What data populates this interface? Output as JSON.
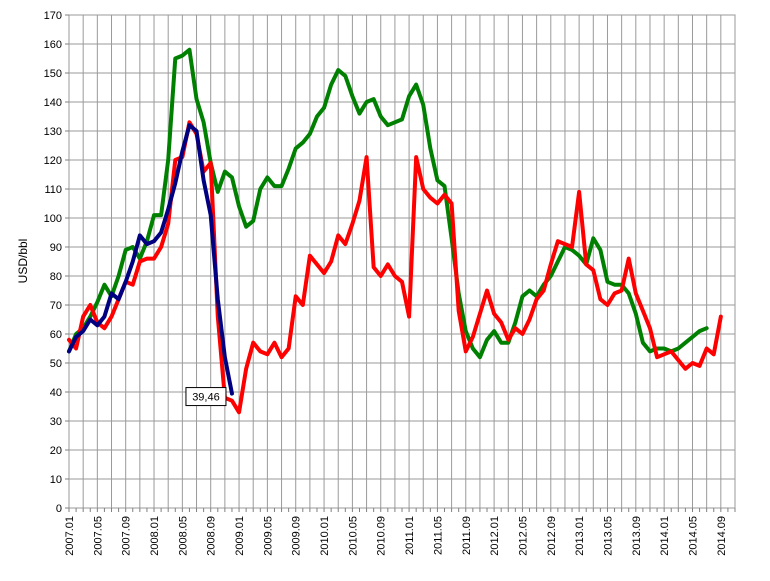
{
  "chart_data": {
    "type": "line",
    "ylabel": "USD/bbl",
    "ylim": [
      0,
      170
    ],
    "ytick_step": 10,
    "grid": true,
    "x_tick_labels": [
      "2007.01",
      "2007.05",
      "2007.09",
      "2008.01",
      "2008.05",
      "2008.09",
      "2009.01",
      "2009.05",
      "2009.09",
      "2010.01",
      "2010.05",
      "2010.09",
      "2011.01",
      "2011.05",
      "2011.09",
      "2012.01",
      "2012.05",
      "2012.09",
      "2013.01",
      "2013.05",
      "2013.09",
      "2014.01",
      "2014.05",
      "2014.09"
    ],
    "x_months": [
      "2007.01",
      "2007.02",
      "2007.03",
      "2007.04",
      "2007.05",
      "2007.06",
      "2007.07",
      "2007.08",
      "2007.09",
      "2007.10",
      "2007.11",
      "2007.12",
      "2008.01",
      "2008.02",
      "2008.03",
      "2008.04",
      "2008.05",
      "2008.06",
      "2008.07",
      "2008.08",
      "2008.09",
      "2008.10",
      "2008.11",
      "2008.12",
      "2009.01",
      "2009.02",
      "2009.03",
      "2009.04",
      "2009.05",
      "2009.06",
      "2009.07",
      "2009.08",
      "2009.09",
      "2009.10",
      "2009.11",
      "2009.12",
      "2010.01",
      "2010.02",
      "2010.03",
      "2010.04",
      "2010.05",
      "2010.06",
      "2010.07",
      "2010.08",
      "2010.09",
      "2010.10",
      "2010.11",
      "2010.12",
      "2011.01",
      "2011.02",
      "2011.03",
      "2011.04",
      "2011.05",
      "2011.06",
      "2011.07",
      "2011.08",
      "2011.09",
      "2011.10",
      "2011.11",
      "2011.12",
      "2012.01",
      "2012.02",
      "2012.03",
      "2012.04",
      "2012.05",
      "2012.06",
      "2012.07",
      "2012.08",
      "2012.09",
      "2012.10",
      "2012.11",
      "2012.12",
      "2013.01",
      "2013.02",
      "2013.03",
      "2013.04",
      "2013.05",
      "2013.06",
      "2013.07",
      "2013.08",
      "2013.09",
      "2013.10",
      "2013.11",
      "2013.12",
      "2014.01",
      "2014.02",
      "2014.03",
      "2014.04",
      "2014.05",
      "2014.06",
      "2014.07",
      "2014.08",
      "2014.09",
      "2014.10",
      "2014.11"
    ],
    "series": [
      {
        "color": "#008000",
        "start_index": 0,
        "values": [
          54,
          60,
          62,
          66,
          71,
          77,
          73,
          80,
          89,
          90,
          86,
          92,
          101,
          101,
          120,
          155,
          156,
          158,
          141,
          133,
          119,
          109,
          116,
          114,
          104,
          97,
          99,
          110,
          114,
          111,
          111,
          117,
          124,
          126,
          129,
          135,
          138,
          146,
          151,
          149,
          142,
          136,
          140,
          141,
          135,
          132,
          133,
          134,
          142,
          146,
          139,
          124,
          113,
          111,
          93,
          74,
          61,
          55,
          52,
          58,
          61,
          57,
          57,
          64,
          73,
          75,
          73,
          77,
          80,
          85,
          90,
          89,
          87,
          84,
          93,
          89,
          78,
          77,
          77,
          74,
          67,
          57,
          54,
          55,
          55,
          54,
          55,
          57,
          59,
          61,
          62
        ]
      },
      {
        "color": "#ff0000",
        "start_index": 0,
        "values": [
          58,
          55,
          66,
          70,
          64,
          62,
          66,
          72,
          78,
          77,
          85,
          86,
          86,
          90,
          98,
          120,
          121,
          133,
          129,
          116,
          119,
          66,
          38,
          37,
          33,
          48,
          57,
          54,
          53,
          57,
          52,
          55,
          73,
          70,
          87,
          84,
          81,
          85,
          94,
          91,
          98,
          106,
          121,
          83,
          80,
          84,
          80,
          78,
          66,
          121,
          110,
          107,
          105,
          108,
          105,
          68,
          54,
          59,
          67,
          75,
          67,
          64,
          58,
          62,
          60,
          65,
          72,
          75,
          84,
          92,
          91,
          90,
          109,
          84,
          82,
          72,
          70,
          74,
          75,
          86,
          74,
          68,
          62,
          52,
          53,
          54,
          51,
          48,
          50,
          49,
          55,
          53,
          66
        ]
      },
      {
        "color": "#000080",
        "start_index": 0,
        "values": [
          54,
          59,
          61,
          65,
          63,
          66,
          74,
          72,
          78,
          85,
          94,
          91,
          92,
          95,
          103,
          112,
          123,
          132,
          130,
          113,
          101,
          72,
          52,
          39.46
        ]
      }
    ],
    "annotations": [
      {
        "text": "39,46",
        "series_index": 2,
        "point_index": 23
      }
    ]
  }
}
